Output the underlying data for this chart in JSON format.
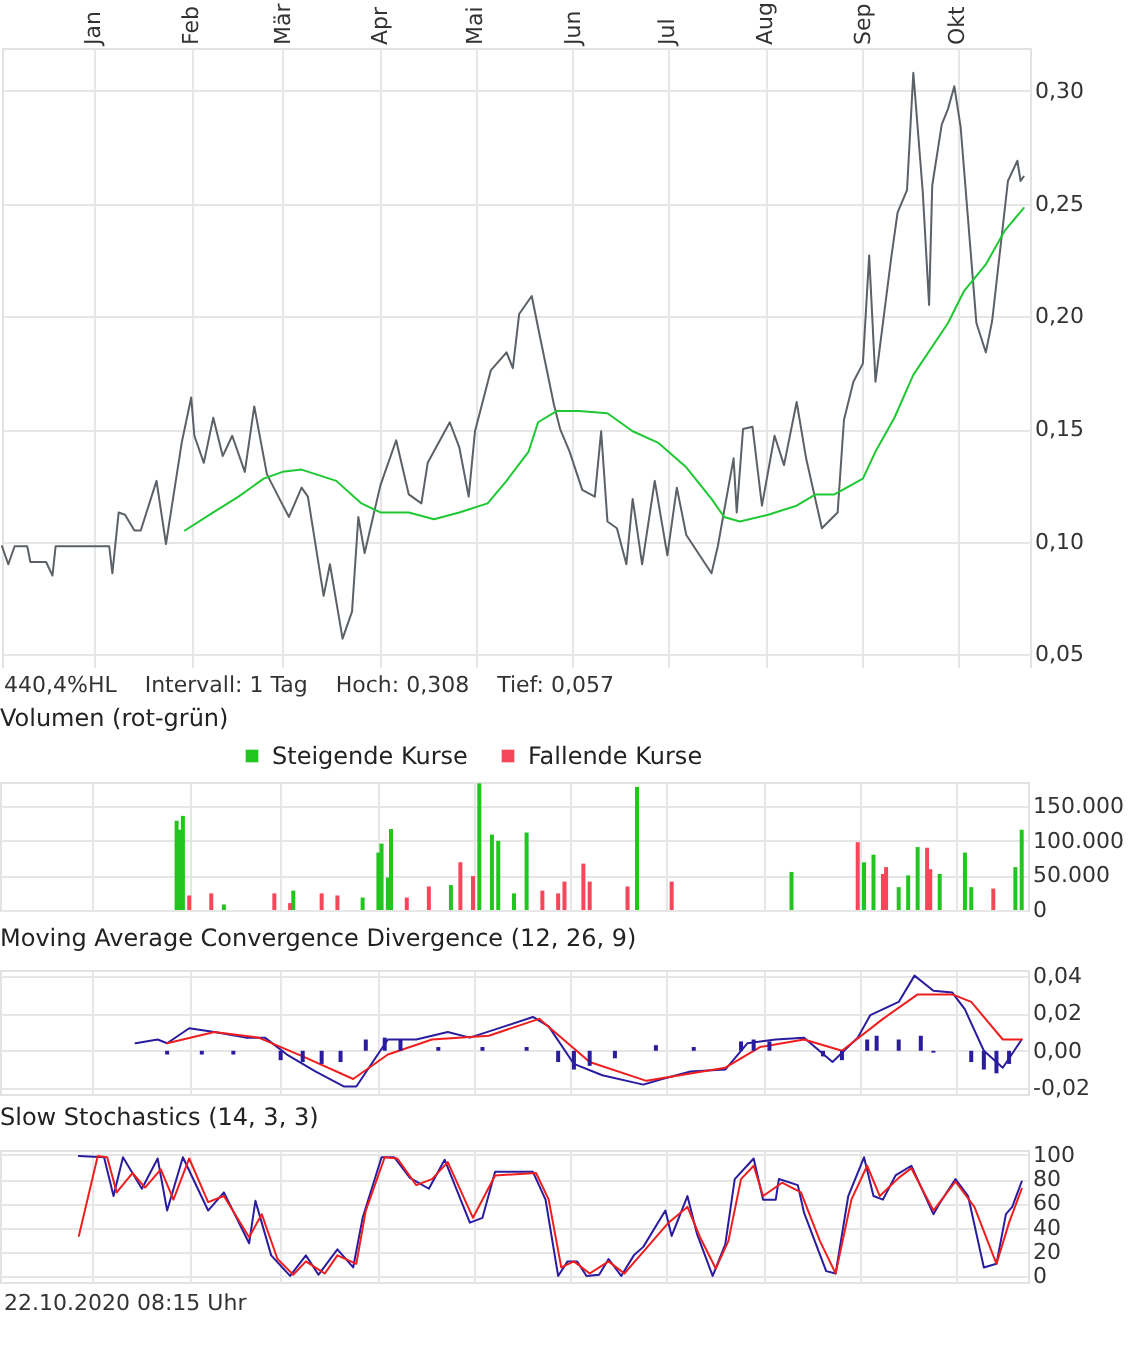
{
  "chart_data": [
    {
      "type": "line",
      "xlim": [
        "2019-12-03",
        "2020-10-24"
      ],
      "xticks": [
        {
          "value": "2020-01-01",
          "label": "Jan"
        },
        {
          "value": "2020-02-01",
          "label": "Feb"
        },
        {
          "value": "2020-03-01",
          "label": "Mär"
        },
        {
          "value": "2020-04-01",
          "label": "Apr"
        },
        {
          "value": "2020-05-01",
          "label": "Mai"
        },
        {
          "value": "2020-06-01",
          "label": "Jun"
        },
        {
          "value": "2020-07-01",
          "label": "Jul"
        },
        {
          "value": "2020-08-01",
          "label": "Aug"
        },
        {
          "value": "2020-09-01",
          "label": "Sep"
        },
        {
          "value": "2020-10-01",
          "label": "Okt"
        }
      ],
      "ylim": [
        0.044,
        0.319
      ],
      "yticks": [
        {
          "value": 0.05,
          "label": "0,05"
        },
        {
          "value": 0.1,
          "label": "0,10"
        },
        {
          "value": 0.15,
          "label": "0,15"
        },
        {
          "value": 0.2,
          "label": "0,20"
        },
        {
          "value": 0.25,
          "label": "0,25"
        },
        {
          "value": 0.3,
          "label": "0,30"
        }
      ],
      "grid": true,
      "series": [
        {
          "color": "#5b6166",
          "x": [
            "2019-12-03",
            "2019-12-05",
            "2019-12-07",
            "2019-12-11",
            "2019-12-12",
            "2019-12-17",
            "2019-12-19",
            "2019-12-20",
            "2020-01-06",
            "2020-01-07",
            "2020-01-09",
            "2020-01-11",
            "2020-01-14",
            "2020-01-16",
            "2020-01-21",
            "2020-01-24",
            "2020-01-29",
            "2020-02-01",
            "2020-02-02",
            "2020-02-05",
            "2020-02-08",
            "2020-02-11",
            "2020-02-14",
            "2020-02-18",
            "2020-02-21",
            "2020-02-25",
            "2020-02-29",
            "2020-03-03",
            "2020-03-07",
            "2020-03-09",
            "2020-03-14",
            "2020-03-16",
            "2020-03-20",
            "2020-03-23",
            "2020-03-25",
            "2020-03-27",
            "2020-04-01",
            "2020-04-06",
            "2020-04-10",
            "2020-04-14",
            "2020-04-16",
            "2020-04-23",
            "2020-04-26",
            "2020-04-29",
            "2020-05-01",
            "2020-05-06",
            "2020-05-11",
            "2020-05-13",
            "2020-05-15",
            "2020-05-19",
            "2020-05-21",
            "2020-05-26",
            "2020-05-28",
            "2020-05-31",
            "2020-06-04",
            "2020-06-08",
            "2020-06-10",
            "2020-06-12",
            "2020-06-15",
            "2020-06-18",
            "2020-06-20",
            "2020-06-23",
            "2020-06-27",
            "2020-07-01",
            "2020-07-04",
            "2020-07-07",
            "2020-07-15",
            "2020-07-17",
            "2020-07-22",
            "2020-07-23",
            "2020-07-25",
            "2020-07-28",
            "2020-07-31",
            "2020-08-04",
            "2020-08-07",
            "2020-08-11",
            "2020-08-14",
            "2020-08-19",
            "2020-08-24",
            "2020-08-26",
            "2020-08-29",
            "2020-09-01",
            "2020-09-03",
            "2020-09-05",
            "2020-09-10",
            "2020-09-12",
            "2020-09-15",
            "2020-09-17",
            "2020-09-20",
            "2020-09-22",
            "2020-09-23",
            "2020-09-26",
            "2020-09-28",
            "2020-09-30",
            "2020-10-02",
            "2020-10-07",
            "2020-10-10",
            "2020-10-12",
            "2020-10-17",
            "2020-10-20",
            "2020-10-21",
            "2020-10-22"
          ],
          "values": [
            0.098,
            0.09,
            0.098,
            0.098,
            0.091,
            0.091,
            0.085,
            0.098,
            0.098,
            0.086,
            0.113,
            0.112,
            0.105,
            0.105,
            0.127,
            0.099,
            0.144,
            0.164,
            0.147,
            0.135,
            0.155,
            0.138,
            0.147,
            0.131,
            0.16,
            0.13,
            0.119,
            0.111,
            0.124,
            0.12,
            0.076,
            0.09,
            0.057,
            0.069,
            0.111,
            0.095,
            0.125,
            0.145,
            0.121,
            0.117,
            0.135,
            0.153,
            0.142,
            0.12,
            0.149,
            0.176,
            0.184,
            0.177,
            0.201,
            0.209,
            0.195,
            0.161,
            0.15,
            0.14,
            0.123,
            0.12,
            0.149,
            0.109,
            0.106,
            0.09,
            0.119,
            0.09,
            0.127,
            0.094,
            0.124,
            0.103,
            0.086,
            0.098,
            0.137,
            0.113,
            0.15,
            0.151,
            0.116,
            0.147,
            0.134,
            0.162,
            0.137,
            0.106,
            0.113,
            0.154,
            0.171,
            0.179,
            0.227,
            0.171,
            0.226,
            0.246,
            0.256,
            0.308,
            0.255,
            0.205,
            0.258,
            0.285,
            0.292,
            0.302,
            0.284,
            0.197,
            0.184,
            0.198,
            0.26,
            0.269,
            0.26,
            0.262
          ]
        },
        {
          "color": "#1ec832",
          "x": [
            "2020-01-30",
            "2020-02-08",
            "2020-02-16",
            "2020-02-24",
            "2020-03-01",
            "2020-03-07",
            "2020-03-18",
            "2020-03-26",
            "2020-04-01",
            "2020-04-10",
            "2020-04-18",
            "2020-04-26",
            "2020-05-05",
            "2020-05-11",
            "2020-05-18",
            "2020-05-21",
            "2020-05-27",
            "2020-06-03",
            "2020-06-12",
            "2020-06-20",
            "2020-06-28",
            "2020-07-07",
            "2020-07-15",
            "2020-07-19",
            "2020-07-24",
            "2020-08-02",
            "2020-08-11",
            "2020-08-17",
            "2020-08-23",
            "2020-09-01",
            "2020-09-05",
            "2020-09-11",
            "2020-09-17",
            "2020-09-28",
            "2020-10-03",
            "2020-10-10",
            "2020-10-16",
            "2020-10-22"
          ],
          "values": [
            0.105,
            0.113,
            0.12,
            0.128,
            0.131,
            0.132,
            0.127,
            0.117,
            0.113,
            0.113,
            0.11,
            0.113,
            0.117,
            0.127,
            0.14,
            0.153,
            0.158,
            0.158,
            0.157,
            0.149,
            0.144,
            0.133,
            0.119,
            0.111,
            0.109,
            0.112,
            0.116,
            0.121,
            0.121,
            0.128,
            0.14,
            0.155,
            0.174,
            0.197,
            0.211,
            0.223,
            0.238,
            0.248
          ]
        }
      ],
      "annotations": [
        "440,4%HL",
        "Intervall: 1 Tag",
        "Hoch: 0,308",
        "Tief: 0,057"
      ]
    },
    {
      "type": "bar",
      "title": "Volumen (rot-grün)",
      "xlim": [
        "2019-12-03",
        "2020-10-24"
      ],
      "xticks": [
        {
          "value": "2020-01-01",
          "label": null
        },
        {
          "value": "2020-02-01",
          "label": null
        },
        {
          "value": "2020-03-01",
          "label": null
        },
        {
          "value": "2020-04-01",
          "label": null
        },
        {
          "value": "2020-05-01",
          "label": null
        },
        {
          "value": "2020-06-01",
          "label": null
        },
        {
          "value": "2020-07-01",
          "label": null
        },
        {
          "value": "2020-08-01",
          "label": null
        },
        {
          "value": "2020-09-01",
          "label": null
        },
        {
          "value": "2020-10-01",
          "label": null
        }
      ],
      "ylim": [
        0,
        185000
      ],
      "yticks": [
        {
          "value": 0,
          "label": "0"
        },
        {
          "value": 50000,
          "label": "50.000"
        },
        {
          "value": 100000,
          "label": "100.000"
        },
        {
          "value": 150000,
          "label": "150.000"
        }
      ],
      "grid": true,
      "tick_labels": "y",
      "legend": "top",
      "series": [
        {
          "name": "Steigende Kurse",
          "color": "#22c41e",
          "x": [
            "2020-01-28",
            "2020-01-29",
            "2020-01-30",
            "2020-02-12",
            "2020-03-05",
            "2020-03-27",
            "2020-04-01",
            "2020-04-02",
            "2020-04-04",
            "2020-04-05",
            "2020-04-24",
            "2020-05-03",
            "2020-05-07",
            "2020-05-09",
            "2020-05-14",
            "2020-05-18",
            "2020-06-22",
            "2020-08-10",
            "2020-08-30",
            "2020-09-02",
            "2020-09-05",
            "2020-09-06",
            "2020-09-13",
            "2020-09-16",
            "2020-09-19",
            "2020-09-20",
            "2020-09-26",
            "2020-09-30",
            "2020-10-04",
            "2020-10-06",
            "2020-10-20",
            "2020-10-22"
          ],
          "values": [
            129000,
            116000,
            136000,
            8000,
            28000,
            18000,
            83000,
            96000,
            47000,
            117000,
            36000,
            183000,
            109000,
            100000,
            24000,
            112000,
            178000,
            55000,
            null,
            69000,
            80000,
            null,
            33000,
            50000,
            91000,
            null,
            52000,
            null,
            83000,
            33000,
            62000,
            116000
          ]
        },
        {
          "name": "Fallende Kurse",
          "color": "#f5465a",
          "x": [
            "2020-02-01",
            "2020-02-08",
            "2020-02-28",
            "2020-03-04",
            "2020-03-14",
            "2020-03-19",
            "2020-04-10",
            "2020-04-17",
            "2020-04-27",
            "2020-05-01",
            "2020-05-23",
            "2020-05-28",
            "2020-05-30",
            "2020-06-05",
            "2020-06-07",
            "2020-06-19",
            "2020-07-03",
            "2020-08-31",
            "2020-09-08",
            "2020-09-09",
            "2020-09-22",
            "2020-09-23",
            "2020-10-13"
          ],
          "values": [
            21000,
            24000,
            24000,
            10000,
            24000,
            21000,
            18000,
            34000,
            69000,
            49000,
            28000,
            24000,
            41000,
            67000,
            41000,
            34000,
            41000,
            98000,
            52000,
            62000,
            90000,
            59000,
            31000
          ]
        }
      ]
    },
    {
      "type": "line",
      "title": "Moving Average Convergence Divergence (12, 26, 9)",
      "xlim": [
        "2019-12-03",
        "2020-10-24"
      ],
      "xticks": [
        {
          "value": "2020-01-01",
          "label": null
        },
        {
          "value": "2020-02-01",
          "label": null
        },
        {
          "value": "2020-03-01",
          "label": null
        },
        {
          "value": "2020-04-01",
          "label": null
        },
        {
          "value": "2020-05-01",
          "label": null
        },
        {
          "value": "2020-06-01",
          "label": null
        },
        {
          "value": "2020-07-01",
          "label": null
        },
        {
          "value": "2020-08-01",
          "label": null
        },
        {
          "value": "2020-09-01",
          "label": null
        },
        {
          "value": "2020-10-01",
          "label": null
        }
      ],
      "ylim": [
        -0.023,
        0.043
      ],
      "yticks": [
        {
          "value": -0.02,
          "label": "-0,02"
        },
        {
          "value": 0,
          "label": "0,00"
        },
        {
          "value": 0.02,
          "label": "0,02"
        },
        {
          "value": 0.04,
          "label": "0,04"
        }
      ],
      "grid": true,
      "tick_labels": "y",
      "series": [
        {
          "type": "bar",
          "color": "#2a1c9e",
          "x": [
            "2020-01-25",
            "2020-02-05",
            "2020-02-15",
            "2020-03-01",
            "2020-03-08",
            "2020-03-14",
            "2020-03-20",
            "2020-03-28",
            "2020-04-03",
            "2020-04-08",
            "2020-04-20",
            "2020-05-04",
            "2020-05-18",
            "2020-05-28",
            "2020-06-02",
            "2020-06-07",
            "2020-06-15",
            "2020-06-28",
            "2020-07-10",
            "2020-07-25",
            "2020-07-29",
            "2020-08-03",
            "2020-08-20",
            "2020-08-26",
            "2020-09-03",
            "2020-09-06",
            "2020-09-13",
            "2020-09-20",
            "2020-09-24",
            "2020-10-06",
            "2020-10-10",
            "2020-10-14",
            "2020-10-18"
          ],
          "values": [
            -0.002,
            -0.002,
            -0.002,
            -0.005,
            -0.006,
            -0.007,
            -0.006,
            0.006,
            0.007,
            0.006,
            0.002,
            0.002,
            0.002,
            -0.006,
            -0.01,
            -0.008,
            -0.004,
            0.003,
            0.002,
            0.005,
            0.006,
            0.005,
            -0.003,
            -0.005,
            0.006,
            0.008,
            0.006,
            0.008,
            -0.001,
            -0.006,
            -0.01,
            -0.012,
            -0.007
          ]
        },
        {
          "color": "#2a1c9e",
          "x": [
            "2020-01-15",
            "2020-01-22",
            "2020-01-25",
            "2020-02-01",
            "2020-02-09",
            "2020-02-19",
            "2020-02-25",
            "2020-03-03",
            "2020-03-12",
            "2020-03-21",
            "2020-03-25",
            "2020-03-31",
            "2020-04-04",
            "2020-04-13",
            "2020-04-23",
            "2020-04-30",
            "2020-05-11",
            "2020-05-20",
            "2020-05-25",
            "2020-06-02",
            "2020-06-11",
            "2020-06-24",
            "2020-06-30",
            "2020-07-09",
            "2020-07-20",
            "2020-07-27",
            "2020-08-05",
            "2020-08-14",
            "2020-08-23",
            "2020-08-31",
            "2020-09-04",
            "2020-09-13",
            "2020-09-18",
            "2020-09-24",
            "2020-09-30",
            "2020-10-04",
            "2020-10-10",
            "2020-10-16",
            "2020-10-22"
          ],
          "values": [
            0.004,
            0.006,
            0.004,
            0.012,
            0.01,
            0.007,
            0.007,
            -0.002,
            -0.011,
            -0.019,
            -0.019,
            -0.004,
            0.006,
            0.006,
            0.01,
            0.007,
            0.013,
            0.018,
            0.013,
            -0.007,
            -0.013,
            -0.018,
            -0.015,
            -0.011,
            -0.01,
            0.004,
            0.006,
            0.007,
            -0.006,
            0.007,
            0.019,
            0.026,
            0.04,
            0.032,
            0.031,
            0.022,
            0,
            -0.009,
            0.006
          ]
        },
        {
          "color": "#f01e1e",
          "x": [
            "2020-01-25",
            "2020-02-09",
            "2020-02-23",
            "2020-03-08",
            "2020-03-24",
            "2020-04-04",
            "2020-04-18",
            "2020-05-06",
            "2020-05-22",
            "2020-06-07",
            "2020-06-25",
            "2020-07-20",
            "2020-07-31",
            "2020-08-14",
            "2020-08-26",
            "2020-09-08",
            "2020-09-19",
            "2020-09-30",
            "2020-10-06",
            "2020-10-16",
            "2020-10-22"
          ],
          "values": [
            0.004,
            0.01,
            0.007,
            -0.003,
            -0.015,
            -0.002,
            0.006,
            0.008,
            0.017,
            -0.006,
            -0.016,
            -0.009,
            0.002,
            0.006,
            0,
            0.017,
            0.03,
            0.03,
            0.026,
            0.006,
            0.006
          ]
        }
      ]
    },
    {
      "type": "line",
      "title": "Slow Stochastics (14, 3, 3)",
      "xlim": [
        "2019-12-03",
        "2020-10-24"
      ],
      "xticks": [
        {
          "value": "2020-01-01",
          "label": null
        },
        {
          "value": "2020-02-01",
          "label": null
        },
        {
          "value": "2020-03-01",
          "label": null
        },
        {
          "value": "2020-04-01",
          "label": null
        },
        {
          "value": "2020-05-01",
          "label": null
        },
        {
          "value": "2020-06-01",
          "label": null
        },
        {
          "value": "2020-07-01",
          "label": null
        },
        {
          "value": "2020-08-01",
          "label": null
        },
        {
          "value": "2020-09-01",
          "label": null
        },
        {
          "value": "2020-10-01",
          "label": null
        }
      ],
      "ylim": [
        -5,
        104
      ],
      "yticks": [
        0,
        20,
        40,
        60,
        80,
        100
      ],
      "grid": true,
      "tick_labels": "y",
      "series": [
        {
          "color": "#2a1c9e",
          "x": [
            "2019-12-28",
            "2020-01-05",
            "2020-01-08",
            "2020-01-11",
            "2020-01-17",
            "2020-01-22",
            "2020-01-25",
            "2020-01-30",
            "2020-02-07",
            "2020-02-12",
            "2020-02-20",
            "2020-02-22",
            "2020-02-27",
            "2020-03-04",
            "2020-03-09",
            "2020-03-13",
            "2020-03-19",
            "2020-03-24",
            "2020-03-27",
            "2020-04-02",
            "2020-04-06",
            "2020-04-11",
            "2020-04-17",
            "2020-04-22",
            "2020-04-30",
            "2020-05-04",
            "2020-05-08",
            "2020-05-20",
            "2020-05-24",
            "2020-05-28",
            "2020-05-31",
            "2020-06-03",
            "2020-06-06",
            "2020-06-10",
            "2020-06-13",
            "2020-06-17",
            "2020-06-21",
            "2020-06-24",
            "2020-07-01",
            "2020-07-03",
            "2020-07-08",
            "2020-07-11",
            "2020-07-16",
            "2020-07-20",
            "2020-07-23",
            "2020-07-29",
            "2020-08-01",
            "2020-08-05",
            "2020-08-06",
            "2020-08-12",
            "2020-08-14",
            "2020-08-21",
            "2020-08-24",
            "2020-08-28",
            "2020-09-02",
            "2020-09-05",
            "2020-09-08",
            "2020-09-12",
            "2020-09-17",
            "2020-09-24",
            "2020-09-26",
            "2020-10-01",
            "2020-10-05",
            "2020-10-10",
            "2020-10-14",
            "2020-10-17",
            "2020-10-19",
            "2020-10-22"
          ],
          "values": [
            99,
            98,
            66,
            98,
            72,
            97,
            54,
            98,
            54,
            69,
            27,
            62,
            17,
            0,
            17,
            1,
            22,
            7,
            48,
            98,
            98,
            81,
            72,
            96,
            44,
            48,
            86,
            86,
            63,
            0,
            12,
            12,
            0,
            1,
            14,
            0,
            17,
            24,
            54,
            33,
            66,
            35,
            0,
            26,
            80,
            97,
            63,
            63,
            80,
            75,
            52,
            4,
            2,
            66,
            98,
            66,
            63,
            83,
            91,
            51,
            60,
            80,
            66,
            7,
            10,
            51,
            57,
            78
          ]
        },
        {
          "color": "#f01e1e",
          "x": [
            "2019-12-28",
            "2020-01-03",
            "2020-01-06",
            "2020-01-09",
            "2020-01-14",
            "2020-01-18",
            "2020-01-23",
            "2020-01-27",
            "2020-02-01",
            "2020-02-07",
            "2020-02-12",
            "2020-02-20",
            "2020-02-24",
            "2020-02-29",
            "2020-03-05",
            "2020-03-09",
            "2020-03-15",
            "2020-03-19",
            "2020-03-25",
            "2020-03-28",
            "2020-04-03",
            "2020-04-07",
            "2020-04-13",
            "2020-04-18",
            "2020-04-23",
            "2020-05-01",
            "2020-05-08",
            "2020-05-21",
            "2020-05-25",
            "2020-05-29",
            "2020-06-02",
            "2020-06-07",
            "2020-06-13",
            "2020-06-18",
            "2020-06-25",
            "2020-07-02",
            "2020-07-08",
            "2020-07-12",
            "2020-07-17",
            "2020-07-21",
            "2020-07-25",
            "2020-07-29",
            "2020-08-01",
            "2020-08-07",
            "2020-08-13",
            "2020-08-19",
            "2020-08-24",
            "2020-08-29",
            "2020-09-03",
            "2020-09-07",
            "2020-09-13",
            "2020-09-17",
            "2020-09-24",
            "2020-10-01",
            "2020-10-07",
            "2020-10-14",
            "2020-10-18",
            "2020-10-22"
          ],
          "values": [
            33,
            99,
            98,
            69,
            85,
            73,
            88,
            63,
            97,
            61,
            66,
            32,
            51,
            14,
            1,
            12,
            2,
            17,
            10,
            54,
            98,
            97,
            75,
            80,
            94,
            48,
            83,
            85,
            63,
            7,
            12,
            2,
            12,
            2,
            23,
            44,
            57,
            32,
            6,
            29,
            80,
            91,
            66,
            77,
            69,
            29,
            2,
            63,
            91,
            66,
            81,
            89,
            54,
            78,
            57,
            10,
            44,
            72
          ]
        }
      ],
      "annotations": [
        "22.10.2020 08:15 Uhr"
      ]
    }
  ]
}
